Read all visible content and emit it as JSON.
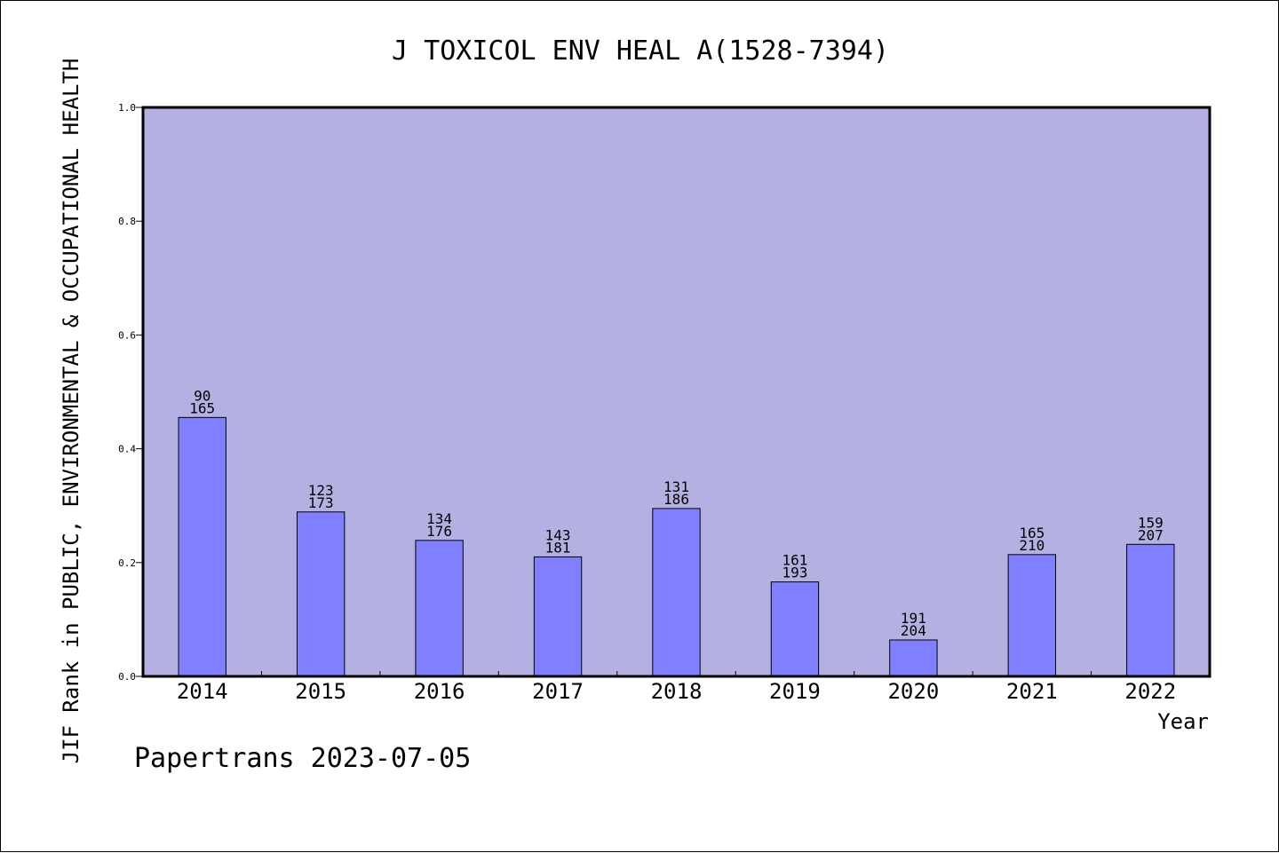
{
  "chart_data": {
    "type": "bar",
    "title": "J TOXICOL ENV HEAL A(1528-7394)",
    "ylabel": "JIF Rank in PUBLIC, ENVIRONMENTAL & OCCUPATIONAL HEALTH",
    "xlabel": "Year",
    "footer": "Papertrans 2023-07-05",
    "categories": [
      "2014",
      "2015",
      "2016",
      "2017",
      "2018",
      "2019",
      "2020",
      "2021",
      "2022"
    ],
    "values": [
      0.455,
      0.289,
      0.239,
      0.21,
      0.295,
      0.166,
      0.064,
      0.214,
      0.232
    ],
    "ranks": [
      "90",
      "123",
      "134",
      "143",
      "131",
      "161",
      "191",
      "165",
      "159"
    ],
    "totals": [
      "165",
      "173",
      "176",
      "181",
      "186",
      "193",
      "204",
      "210",
      "207"
    ],
    "ylim": [
      0,
      1
    ],
    "yticks": [
      "0.0",
      "0.2",
      "0.4",
      "0.6",
      "0.8",
      "1.0"
    ],
    "colors": {
      "plot_background": "#b5b0e2",
      "bar": "#8080ff",
      "bar_edge": "#000000"
    }
  }
}
